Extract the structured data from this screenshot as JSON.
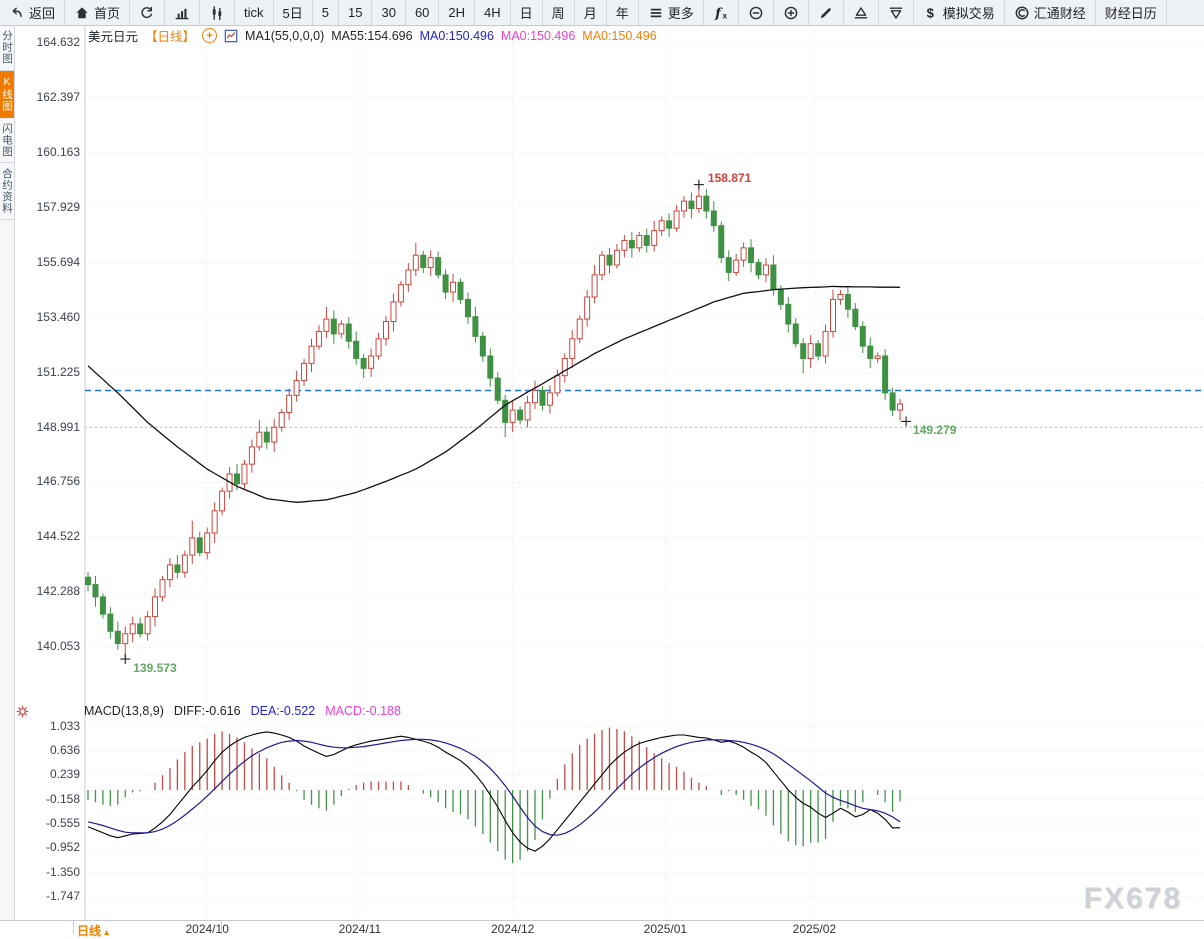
{
  "toolbar": {
    "buttons": [
      {
        "name": "back",
        "icon": "back-arrow-icon",
        "label": "返回"
      },
      {
        "name": "home",
        "icon": "home-icon",
        "label": "首页"
      },
      {
        "name": "refresh",
        "icon": "refresh-icon",
        "label": ""
      },
      {
        "name": "bar-chart-view",
        "icon": "bar-chart-icon",
        "label": ""
      },
      {
        "name": "candlestick-view",
        "icon": "candlestick-icon",
        "label": ""
      },
      {
        "name": "tick",
        "label": "tick"
      },
      {
        "name": "5day",
        "label": "5日"
      },
      {
        "name": "5min",
        "label": "5"
      },
      {
        "name": "15min",
        "label": "15"
      },
      {
        "name": "30min",
        "label": "30"
      },
      {
        "name": "60min",
        "label": "60"
      },
      {
        "name": "2hour",
        "label": "2H"
      },
      {
        "name": "4hour",
        "label": "4H"
      },
      {
        "name": "day",
        "label": "日"
      },
      {
        "name": "week",
        "label": "周"
      },
      {
        "name": "month",
        "label": "月"
      },
      {
        "name": "year",
        "label": "年"
      },
      {
        "name": "more",
        "icon": "menu-icon",
        "label": "更多"
      },
      {
        "name": "indicator-fx",
        "icon": "fx-icon",
        "label": ""
      },
      {
        "name": "zoom-out",
        "icon": "zoom-out-icon",
        "label": ""
      },
      {
        "name": "zoom-in",
        "icon": "zoom-in-icon",
        "label": ""
      },
      {
        "name": "draw",
        "icon": "pencil-icon",
        "label": ""
      },
      {
        "name": "pattern-up",
        "icon": "triangle-up-icon",
        "label": ""
      },
      {
        "name": "pattern-down",
        "icon": "triangle-down-icon",
        "label": ""
      },
      {
        "name": "sim-trading",
        "icon": "dollar-icon",
        "label": "模拟交易"
      },
      {
        "name": "huitong-finance",
        "icon": "huitong-logo-icon",
        "label": "汇通财经"
      },
      {
        "name": "finance-calendar",
        "label": "财经日历"
      }
    ]
  },
  "sidebar": {
    "tabs": [
      {
        "name": "time-chart",
        "label": "分时图",
        "active": false
      },
      {
        "name": "kline-chart",
        "label": "K线图",
        "active": true
      },
      {
        "name": "flash-chart",
        "label": "闪电图",
        "active": false
      },
      {
        "name": "contract-info",
        "label": "合约资料",
        "active": false
      }
    ]
  },
  "header": {
    "symbol": "美元日元",
    "interval_label": "【日线】",
    "ma1": "MA1(55,0,0,0)",
    "ma55": "MA55:154.696",
    "ma0_blue": "MA0:150.496",
    "ma0_magenta": "MA0:150.496",
    "ma0_orange": "MA0:150.496"
  },
  "macd_header": {
    "title": "MACD(13,8,9)",
    "diff": "DIFF:-0.616",
    "dea": "DEA:-0.522",
    "macd": "MACD:-0.188"
  },
  "bottom_bar": {
    "interval": "日线",
    "arrow": "▴"
  },
  "watermark": "FX678",
  "colors": {
    "up": "#c8473f",
    "down": "#3f9143",
    "ma55": "#111111",
    "diff_line": "#000000",
    "dea_line": "#1b1b8e",
    "hist_up": "#bf4d45",
    "hist_down": "#44934a",
    "blue_dashed": "#1b77e0",
    "last_dotted": "#b8bcc2",
    "grid": "#e3e5e9",
    "axis": "#c9cdd3",
    "accent_orange": "#f08000"
  },
  "chart_data": {
    "type": "candlestick",
    "symbol": "美元日元",
    "interval": "日线",
    "y_ticks": [
      "164.632",
      "162.397",
      "160.163",
      "157.929",
      "155.694",
      "153.460",
      "151.225",
      "148.991",
      "146.756",
      "144.522",
      "142.288",
      "140.053"
    ],
    "macd_y_ticks": [
      "1.033",
      "0.636",
      "0.239",
      "-0.158",
      "-0.555",
      "-0.952",
      "-1.350",
      "-1.747"
    ],
    "x_labels": [
      {
        "label": "2024/10",
        "index": 16
      },
      {
        "label": "2024/11",
        "index": 36.5
      },
      {
        "label": "2024/12",
        "index": 57
      },
      {
        "label": "2025/01",
        "index": 77.5
      },
      {
        "label": "2025/02",
        "index": 97.5
      }
    ],
    "annotations": {
      "high": {
        "index": 82,
        "value": "158.871"
      },
      "low": {
        "index": 5,
        "value": "139.573"
      },
      "last": {
        "index": 109,
        "value": "149.279"
      }
    },
    "reference_lines": {
      "blue_dashed_price": 150.496,
      "gray_dotted_price": 149.0
    },
    "candles": [
      [
        142.9,
        143.12,
        142.32,
        142.6
      ],
      [
        142.6,
        142.95,
        141.7,
        142.1
      ],
      [
        142.1,
        142.25,
        141.22,
        141.4
      ],
      [
        141.4,
        141.68,
        140.4,
        140.7
      ],
      [
        140.7,
        141.1,
        139.95,
        140.2
      ],
      [
        140.2,
        140.9,
        139.573,
        140.6
      ],
      [
        140.6,
        141.3,
        140.25,
        141.0
      ],
      [
        141.0,
        141.25,
        140.45,
        140.6
      ],
      [
        140.6,
        141.52,
        140.32,
        141.3
      ],
      [
        141.3,
        142.45,
        140.9,
        142.1
      ],
      [
        142.1,
        142.95,
        141.92,
        142.8
      ],
      [
        142.8,
        143.68,
        142.5,
        143.4
      ],
      [
        143.4,
        143.8,
        142.85,
        143.1
      ],
      [
        143.1,
        143.98,
        142.88,
        143.8
      ],
      [
        143.8,
        145.2,
        143.45,
        144.5
      ],
      [
        144.5,
        144.75,
        143.75,
        143.9
      ],
      [
        143.9,
        144.92,
        143.62,
        144.7
      ],
      [
        144.7,
        145.95,
        144.3,
        145.6
      ],
      [
        145.6,
        146.55,
        145.42,
        146.4
      ],
      [
        146.4,
        147.38,
        146.1,
        147.1
      ],
      [
        147.1,
        147.5,
        146.45,
        146.7
      ],
      [
        146.7,
        147.68,
        146.48,
        147.5
      ],
      [
        147.5,
        148.5,
        147.15,
        148.2
      ],
      [
        148.2,
        149.3,
        148.05,
        148.8
      ],
      [
        148.8,
        149.02,
        148.12,
        148.4
      ],
      [
        148.4,
        149.35,
        148.0,
        149.0
      ],
      [
        149.0,
        149.75,
        148.82,
        149.6
      ],
      [
        149.6,
        150.58,
        149.3,
        150.3
      ],
      [
        150.3,
        151.3,
        150.05,
        150.9
      ],
      [
        150.9,
        151.78,
        150.68,
        151.6
      ],
      [
        151.6,
        152.6,
        151.25,
        152.3
      ],
      [
        152.3,
        153.15,
        152.15,
        152.9
      ],
      [
        152.9,
        153.9,
        152.62,
        153.4
      ],
      [
        153.4,
        153.75,
        152.4,
        152.8
      ],
      [
        152.8,
        153.35,
        152.62,
        153.2
      ],
      [
        153.2,
        153.48,
        152.2,
        152.5
      ],
      [
        152.5,
        152.9,
        151.55,
        151.8
      ],
      [
        151.8,
        151.98,
        151.0,
        151.4
      ],
      [
        151.4,
        152.2,
        151.05,
        151.9
      ],
      [
        151.9,
        152.85,
        151.75,
        152.6
      ],
      [
        152.6,
        153.52,
        152.32,
        153.3
      ],
      [
        153.3,
        154.45,
        152.9,
        154.1
      ],
      [
        154.1,
        154.95,
        153.92,
        154.8
      ],
      [
        154.8,
        155.68,
        154.5,
        155.4
      ],
      [
        155.4,
        156.5,
        155.15,
        156.0
      ],
      [
        156.0,
        156.18,
        155.28,
        155.5
      ],
      [
        155.5,
        156.2,
        155.15,
        155.9
      ],
      [
        155.9,
        156.15,
        155.05,
        155.2
      ],
      [
        155.2,
        155.42,
        154.22,
        154.5
      ],
      [
        154.5,
        155.25,
        154.1,
        154.9
      ],
      [
        154.9,
        155.05,
        154.02,
        154.2
      ],
      [
        154.2,
        154.48,
        153.2,
        153.5
      ],
      [
        153.5,
        153.9,
        152.45,
        152.7
      ],
      [
        152.7,
        152.88,
        151.68,
        151.9
      ],
      [
        151.9,
        152.2,
        150.65,
        151.0
      ],
      [
        151.0,
        151.25,
        149.95,
        150.1
      ],
      [
        150.1,
        150.32,
        148.6,
        149.2
      ],
      [
        149.2,
        150.05,
        148.8,
        149.7
      ],
      [
        149.7,
        149.85,
        149.12,
        149.3
      ],
      [
        149.3,
        150.28,
        149.0,
        150.0
      ],
      [
        150.0,
        150.9,
        149.75,
        150.5
      ],
      [
        150.5,
        150.68,
        149.68,
        149.9
      ],
      [
        149.9,
        150.7,
        149.55,
        150.4
      ],
      [
        150.4,
        151.35,
        150.25,
        151.1
      ],
      [
        151.1,
        152.02,
        150.82,
        151.8
      ],
      [
        151.8,
        152.95,
        151.4,
        152.6
      ],
      [
        152.6,
        153.55,
        152.42,
        153.4
      ],
      [
        153.4,
        154.58,
        153.1,
        154.3
      ],
      [
        154.3,
        155.6,
        154.05,
        155.2
      ],
      [
        155.2,
        156.18,
        154.98,
        156.0
      ],
      [
        156.0,
        156.3,
        155.25,
        155.6
      ],
      [
        155.6,
        156.45,
        155.45,
        156.2
      ],
      [
        156.2,
        156.82,
        155.92,
        156.6
      ],
      [
        156.6,
        156.95,
        155.9,
        156.3
      ],
      [
        156.3,
        156.95,
        156.12,
        156.8
      ],
      [
        156.8,
        157.08,
        156.1,
        156.4
      ],
      [
        156.4,
        157.4,
        156.15,
        157.0
      ],
      [
        157.0,
        157.58,
        156.78,
        157.4
      ],
      [
        157.4,
        157.7,
        156.75,
        157.1
      ],
      [
        157.1,
        158.05,
        156.95,
        157.8
      ],
      [
        157.8,
        158.42,
        157.52,
        158.2
      ],
      [
        158.2,
        158.55,
        157.5,
        157.9
      ],
      [
        157.9,
        158.871,
        157.72,
        158.4
      ],
      [
        158.4,
        158.68,
        157.5,
        157.8
      ],
      [
        157.8,
        158.2,
        156.95,
        157.2
      ],
      [
        157.2,
        157.38,
        155.68,
        155.9
      ],
      [
        155.9,
        156.2,
        154.95,
        155.3
      ],
      [
        155.3,
        156.05,
        155.15,
        155.8
      ],
      [
        155.8,
        156.52,
        155.52,
        156.3
      ],
      [
        156.3,
        156.65,
        155.3,
        155.7
      ],
      [
        155.7,
        155.85,
        155.02,
        155.2
      ],
      [
        155.2,
        155.88,
        154.9,
        155.6
      ],
      [
        155.6,
        156.0,
        154.35,
        154.6
      ],
      [
        154.6,
        154.78,
        153.78,
        154.0
      ],
      [
        154.0,
        154.3,
        152.85,
        153.2
      ],
      [
        153.2,
        153.45,
        152.25,
        152.4
      ],
      [
        152.4,
        152.62,
        151.2,
        151.8
      ],
      [
        151.8,
        152.75,
        151.4,
        152.4
      ],
      [
        152.4,
        152.55,
        151.72,
        151.9
      ],
      [
        151.9,
        153.18,
        151.6,
        152.9
      ],
      [
        152.9,
        154.6,
        152.65,
        154.2
      ],
      [
        154.2,
        154.58,
        153.98,
        154.4
      ],
      [
        154.4,
        154.7,
        153.45,
        153.8
      ],
      [
        153.8,
        154.05,
        152.95,
        153.1
      ],
      [
        153.1,
        153.32,
        152.02,
        152.3
      ],
      [
        152.3,
        152.65,
        151.4,
        151.8
      ],
      [
        151.8,
        152.05,
        151.62,
        151.9
      ],
      [
        151.9,
        152.18,
        150.1,
        150.4
      ],
      [
        150.4,
        150.62,
        149.45,
        149.7
      ],
      [
        149.7,
        150.15,
        149.279,
        149.95
      ]
    ],
    "ma55": [
      151.5,
      151.22,
      150.95,
      150.67,
      150.4,
      150.1,
      149.8,
      149.5,
      149.2,
      148.95,
      148.7,
      148.45,
      148.2,
      147.98,
      147.75,
      147.52,
      147.3,
      147.12,
      146.95,
      146.77,
      146.6,
      146.47,
      146.35,
      146.22,
      146.1,
      146.06,
      146.02,
      145.98,
      145.95,
      145.97,
      146.0,
      146.02,
      146.05,
      146.12,
      146.2,
      146.27,
      146.35,
      146.46,
      146.57,
      146.69,
      146.8,
      146.92,
      147.05,
      147.17,
      147.3,
      147.47,
      147.65,
      147.82,
      148.0,
      148.22,
      148.45,
      148.67,
      148.9,
      149.15,
      149.4,
      149.65,
      149.9,
      150.08,
      150.25,
      150.43,
      150.6,
      150.77,
      150.95,
      151.12,
      151.3,
      151.47,
      151.65,
      151.82,
      152.0,
      152.15,
      152.3,
      152.45,
      152.6,
      152.72,
      152.85,
      152.97,
      153.1,
      153.22,
      153.35,
      153.47,
      153.6,
      153.72,
      153.85,
      153.97,
      154.1,
      154.19,
      154.28,
      154.36,
      154.45,
      154.49,
      154.52,
      154.56,
      154.6,
      154.62,
      154.64,
      154.66,
      154.68,
      154.69,
      154.7,
      154.71,
      154.73,
      154.72,
      154.72,
      154.71,
      154.71,
      154.71,
      154.7,
      154.7,
      154.7,
      154.696
    ],
    "macd": {
      "params": [
        13,
        8,
        9
      ],
      "diff": [
        -0.6,
        -0.65,
        -0.7,
        -0.75,
        -0.78,
        -0.75,
        -0.72,
        -0.71,
        -0.7,
        -0.62,
        -0.52,
        -0.4,
        -0.25,
        -0.1,
        0.05,
        0.18,
        0.32,
        0.48,
        0.62,
        0.72,
        0.8,
        0.86,
        0.9,
        0.93,
        0.95,
        0.93,
        0.9,
        0.86,
        0.8,
        0.72,
        0.66,
        0.6,
        0.55,
        0.58,
        0.64,
        0.7,
        0.74,
        0.77,
        0.8,
        0.82,
        0.84,
        0.86,
        0.88,
        0.86,
        0.83,
        0.8,
        0.76,
        0.7,
        0.62,
        0.55,
        0.48,
        0.38,
        0.25,
        0.1,
        -0.08,
        -0.28,
        -0.5,
        -0.7,
        -0.85,
        -0.95,
        -1.0,
        -0.92,
        -0.8,
        -0.65,
        -0.5,
        -0.35,
        -0.2,
        -0.05,
        0.1,
        0.25,
        0.4,
        0.52,
        0.62,
        0.7,
        0.76,
        0.8,
        0.83,
        0.86,
        0.88,
        0.9,
        0.9,
        0.88,
        0.86,
        0.85,
        0.82,
        0.78,
        0.8,
        0.76,
        0.7,
        0.62,
        0.55,
        0.45,
        0.3,
        0.15,
        0.0,
        -0.12,
        -0.22,
        -0.28,
        -0.38,
        -0.45,
        -0.38,
        -0.3,
        -0.36,
        -0.44,
        -0.4,
        -0.32,
        -0.38,
        -0.48,
        -0.62,
        -0.616
      ],
      "dea": [
        -0.52,
        -0.55,
        -0.58,
        -0.62,
        -0.66,
        -0.69,
        -0.7,
        -0.7,
        -0.7,
        -0.68,
        -0.64,
        -0.58,
        -0.5,
        -0.41,
        -0.31,
        -0.21,
        -0.1,
        0.02,
        0.14,
        0.26,
        0.37,
        0.47,
        0.56,
        0.63,
        0.69,
        0.74,
        0.78,
        0.8,
        0.81,
        0.8,
        0.78,
        0.75,
        0.72,
        0.7,
        0.69,
        0.69,
        0.7,
        0.71,
        0.73,
        0.75,
        0.77,
        0.79,
        0.81,
        0.82,
        0.83,
        0.83,
        0.82,
        0.8,
        0.77,
        0.73,
        0.68,
        0.62,
        0.55,
        0.46,
        0.35,
        0.22,
        0.07,
        -0.1,
        -0.28,
        -0.45,
        -0.59,
        -0.68,
        -0.73,
        -0.74,
        -0.71,
        -0.65,
        -0.57,
        -0.47,
        -0.36,
        -0.24,
        -0.11,
        0.02,
        0.14,
        0.26,
        0.36,
        0.45,
        0.53,
        0.6,
        0.66,
        0.71,
        0.75,
        0.78,
        0.8,
        0.82,
        0.82,
        0.82,
        0.81,
        0.8,
        0.78,
        0.75,
        0.71,
        0.66,
        0.59,
        0.51,
        0.42,
        0.33,
        0.24,
        0.15,
        0.05,
        -0.05,
        -0.12,
        -0.17,
        -0.21,
        -0.26,
        -0.3,
        -0.32,
        -0.34,
        -0.38,
        -0.44,
        -0.522
      ]
    }
  }
}
